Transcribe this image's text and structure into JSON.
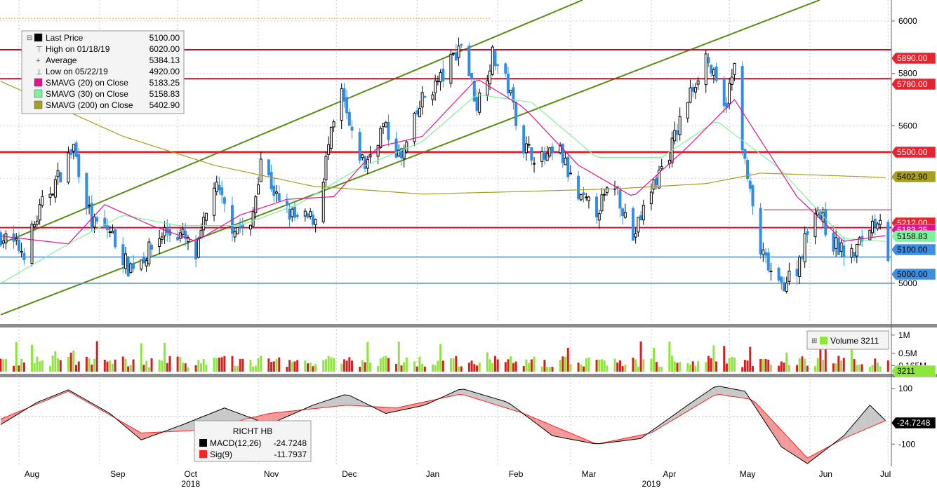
{
  "legend": {
    "items": [
      {
        "label": "Last Price",
        "value": "5100.00",
        "swatch": "#000000",
        "glyph": "box"
      },
      {
        "label": "High on 01/18/19",
        "value": "6020.00",
        "swatch": "#000000",
        "glyph": "high"
      },
      {
        "label": "Average",
        "value": "5384.13",
        "swatch": "#000000",
        "glyph": "avg"
      },
      {
        "label": "Low on 05/22/19",
        "value": "4920.00",
        "swatch": "#000000",
        "glyph": "low"
      },
      {
        "label": "SMAVG (20)  on Close",
        "value": "5183.25",
        "swatch": "#e0138c",
        "glyph": "box"
      },
      {
        "label": "SMAVG (30)  on Close",
        "value": "5158.83",
        "swatch": "#7cf29a",
        "glyph": "box"
      },
      {
        "label": "SMAVG (200)  on Close",
        "value": "5402.90",
        "swatch": "#a79f1e",
        "glyph": "box"
      }
    ]
  },
  "volume_legend": {
    "label": "Volume",
    "value": "3211",
    "swatch": "#8ee63c"
  },
  "macd_legend": {
    "title": "RICHT HB",
    "items": [
      {
        "label": "MACD(12,26)",
        "value": "-24.7248",
        "swatch": "#000000"
      },
      {
        "label": "Sig(9)",
        "value": "-11.7937",
        "swatch": "#ff2020"
      }
    ]
  },
  "price_axis": {
    "ticks": [
      "6000",
      "5800",
      "5600",
      "5400",
      "5200",
      "5000"
    ],
    "tick_values": [
      6000,
      5800,
      5600,
      5400,
      5200,
      5000
    ],
    "badges": [
      {
        "label": "5890.00",
        "value": 5890,
        "bg": "#e8232d",
        "fg": "#ffffff"
      },
      {
        "label": "5780.00",
        "value": 5780,
        "bg": "#e8232d",
        "fg": "#ffffff"
      },
      {
        "label": "5500.00",
        "value": 5500,
        "bg": "#e8232d",
        "fg": "#ffffff"
      },
      {
        "label": "5402.90",
        "value": 5402.9,
        "bg": "#a79f1e",
        "fg": "#000000"
      },
      {
        "label": "5212.00",
        "value": 5212,
        "bg": "#e8232d",
        "fg": "#ffffff"
      },
      {
        "label": "5183.25",
        "value": 5183.25,
        "bg": "#e0138c",
        "fg": "#ffffff"
      },
      {
        "label": "5158.83",
        "value": 5158.83,
        "bg": "#7cf29a",
        "fg": "#000000"
      },
      {
        "label": "5100.00",
        "value": 5100,
        "bg": "#3d8fe0",
        "fg": "#000000"
      },
      {
        "label": "5000.00",
        "value": 5000,
        "bg": "#3d8fe0",
        "fg": "#000000"
      }
    ]
  },
  "volume_axis": {
    "ticks": [
      "1M",
      "0.5M",
      "0.165M"
    ],
    "tick_values": [
      1000000,
      500000,
      165000
    ],
    "badge": {
      "label": "3211",
      "value": 3211,
      "bg": "#8ee63c",
      "fg": "#000000"
    }
  },
  "macd_axis": {
    "ticks": [
      "100",
      "-100"
    ],
    "tick_values": [
      100,
      -100
    ],
    "badge": {
      "label": "-24.7248",
      "value": -24.7248,
      "bg": "#000000",
      "fg": "#ffffff"
    }
  },
  "x_axis": {
    "months": [
      "Aug",
      "Sep",
      "Oct",
      "Nov",
      "Dec",
      "Jan",
      "Feb",
      "Mar",
      "Apr",
      "May",
      "Jun",
      "Jul"
    ],
    "years": [
      "2018",
      "2019"
    ]
  },
  "colors": {
    "up_candle": "#000000",
    "down_candle": "#2f8ee8",
    "resistance": "#c8102e",
    "support_blue": "#3d8fe0",
    "channel": "#5a8c12",
    "vol_up": "#8ee63c",
    "vol_down": "#d42020"
  },
  "chart_data": {
    "type": "candlestick",
    "period": "2018-07-25 to 2019-07-01 (daily)",
    "levels": {
      "resistance": [
        5890,
        5780,
        5500,
        5212
      ],
      "support": [
        5100,
        5000
      ],
      "channel_lines": "two parallel rising trend lines"
    },
    "close_path": [
      [
        "2018-07-25",
        5180
      ],
      [
        "2018-08-03",
        5120
      ],
      [
        "2018-08-10",
        5300
      ],
      [
        "2018-08-17",
        5420
      ],
      [
        "2018-08-22",
        5520
      ],
      [
        "2018-08-29",
        5230
      ],
      [
        "2018-09-05",
        5200
      ],
      [
        "2018-09-12",
        5060
      ],
      [
        "2018-09-19",
        5110
      ],
      [
        "2018-09-26",
        5200
      ],
      [
        "2018-10-03",
        5180
      ],
      [
        "2018-10-08",
        5100
      ],
      [
        "2018-10-15",
        5380
      ],
      [
        "2018-10-22",
        5220
      ],
      [
        "2018-10-29",
        5200
      ],
      [
        "2018-11-02",
        5480
      ],
      [
        "2018-11-09",
        5300
      ],
      [
        "2018-11-16",
        5240
      ],
      [
        "2018-11-23",
        5250
      ],
      [
        "2018-11-28",
        5520
      ],
      [
        "2018-12-03",
        5720
      ],
      [
        "2018-12-07",
        5550
      ],
      [
        "2018-12-12",
        5450
      ],
      [
        "2018-12-19",
        5600
      ],
      [
        "2018-12-26",
        5470
      ],
      [
        "2019-01-03",
        5700
      ],
      [
        "2019-01-11",
        5790
      ],
      [
        "2019-01-18",
        5920
      ],
      [
        "2019-01-24",
        5680
      ],
      [
        "2019-01-30",
        5870
      ],
      [
        "2019-02-05",
        5750
      ],
      [
        "2019-02-11",
        5520
      ],
      [
        "2019-02-18",
        5470
      ],
      [
        "2019-02-25",
        5500
      ],
      [
        "2019-03-04",
        5320
      ],
      [
        "2019-03-11",
        5280
      ],
      [
        "2019-03-18",
        5380
      ],
      [
        "2019-03-25",
        5170
      ],
      [
        "2019-04-01",
        5360
      ],
      [
        "2019-04-08",
        5500
      ],
      [
        "2019-04-15",
        5700
      ],
      [
        "2019-04-22",
        5870
      ],
      [
        "2019-04-29",
        5660
      ],
      [
        "2019-05-03",
        5820
      ],
      [
        "2019-05-07",
        5450
      ],
      [
        "2019-05-13",
        5120
      ],
      [
        "2019-05-20",
        4980
      ],
      [
        "2019-05-27",
        5060
      ],
      [
        "2019-06-03",
        5300
      ],
      [
        "2019-06-10",
        5150
      ],
      [
        "2019-06-17",
        5100
      ],
      [
        "2019-06-24",
        5220
      ],
      [
        "2019-06-28",
        5260
      ],
      [
        "2019-07-01",
        5100
      ]
    ],
    "smavg20_path": [
      [
        "2018-07-25",
        5180
      ],
      [
        "2018-08-20",
        5150
      ],
      [
        "2018-09-03",
        5300
      ],
      [
        "2018-09-21",
        5220
      ],
      [
        "2018-10-08",
        5160
      ],
      [
        "2018-10-25",
        5260
      ],
      [
        "2018-11-12",
        5320
      ],
      [
        "2018-11-30",
        5330
      ],
      [
        "2018-12-17",
        5520
      ],
      [
        "2019-01-03",
        5560
      ],
      [
        "2019-01-24",
        5780
      ],
      [
        "2019-02-11",
        5670
      ],
      [
        "2019-03-04",
        5450
      ],
      [
        "2019-03-25",
        5330
      ],
      [
        "2019-04-15",
        5520
      ],
      [
        "2019-05-03",
        5700
      ],
      [
        "2019-05-27",
        5330
      ],
      [
        "2019-06-14",
        5160
      ],
      [
        "2019-07-01",
        5183.25
      ]
    ],
    "smavg30_path": [
      [
        "2018-07-25",
        5000
      ],
      [
        "2018-08-20",
        5150
      ],
      [
        "2018-09-10",
        5260
      ],
      [
        "2018-10-01",
        5220
      ],
      [
        "2018-10-25",
        5220
      ],
      [
        "2018-11-16",
        5300
      ],
      [
        "2018-12-10",
        5440
      ],
      [
        "2019-01-03",
        5540
      ],
      [
        "2019-01-24",
        5720
      ],
      [
        "2019-02-14",
        5690
      ],
      [
        "2019-03-11",
        5480
      ],
      [
        "2019-04-05",
        5480
      ],
      [
        "2019-04-26",
        5620
      ],
      [
        "2019-05-20",
        5440
      ],
      [
        "2019-06-14",
        5170
      ],
      [
        "2019-07-01",
        5158.83
      ]
    ],
    "smavg200_path": [
      [
        "2018-07-25",
        5770
      ],
      [
        "2018-09-10",
        5560
      ],
      [
        "2018-10-15",
        5450
      ],
      [
        "2018-11-22",
        5370
      ],
      [
        "2019-01-03",
        5340
      ],
      [
        "2019-02-11",
        5350
      ],
      [
        "2019-03-18",
        5360
      ],
      [
        "2019-04-22",
        5380
      ],
      [
        "2019-05-13",
        5420
      ],
      [
        "2019-07-01",
        5402.9
      ]
    ],
    "macd_path": [
      [
        "2018-07-25",
        -30
      ],
      [
        "2018-08-08",
        50
      ],
      [
        "2018-08-20",
        95
      ],
      [
        "2018-09-05",
        10
      ],
      [
        "2018-09-17",
        -85
      ],
      [
        "2018-10-03",
        -30
      ],
      [
        "2018-10-19",
        30
      ],
      [
        "2018-11-05",
        -30
      ],
      [
        "2018-11-22",
        40
      ],
      [
        "2018-12-05",
        80
      ],
      [
        "2018-12-20",
        10
      ],
      [
        "2019-01-04",
        40
      ],
      [
        "2019-01-18",
        100
      ],
      [
        "2019-02-05",
        50
      ],
      [
        "2019-02-22",
        -70
      ],
      [
        "2019-03-11",
        -100
      ],
      [
        "2019-03-28",
        -80
      ],
      [
        "2019-04-15",
        40
      ],
      [
        "2019-04-26",
        110
      ],
      [
        "2019-05-07",
        90
      ],
      [
        "2019-05-21",
        -110
      ],
      [
        "2019-05-31",
        -170
      ],
      [
        "2019-06-14",
        -70
      ],
      [
        "2019-06-24",
        40
      ],
      [
        "2019-07-01",
        -24.7248
      ]
    ],
    "signal_path": [
      [
        "2018-07-25",
        -10
      ],
      [
        "2018-08-20",
        90
      ],
      [
        "2018-09-17",
        -60
      ],
      [
        "2018-10-10",
        -50
      ],
      [
        "2018-11-05",
        10
      ],
      [
        "2018-12-05",
        40
      ],
      [
        "2018-12-24",
        30
      ],
      [
        "2019-01-18",
        80
      ],
      [
        "2019-02-11",
        10
      ],
      [
        "2019-03-11",
        -100
      ],
      [
        "2019-04-01",
        -60
      ],
      [
        "2019-04-26",
        80
      ],
      [
        "2019-05-10",
        60
      ],
      [
        "2019-05-31",
        -150
      ],
      [
        "2019-06-14",
        -80
      ],
      [
        "2019-07-01",
        -11.7937
      ]
    ],
    "volume_last": 3211,
    "ylim_price": [
      4850,
      6080
    ],
    "ylim_macd": [
      -180,
      135
    ]
  }
}
